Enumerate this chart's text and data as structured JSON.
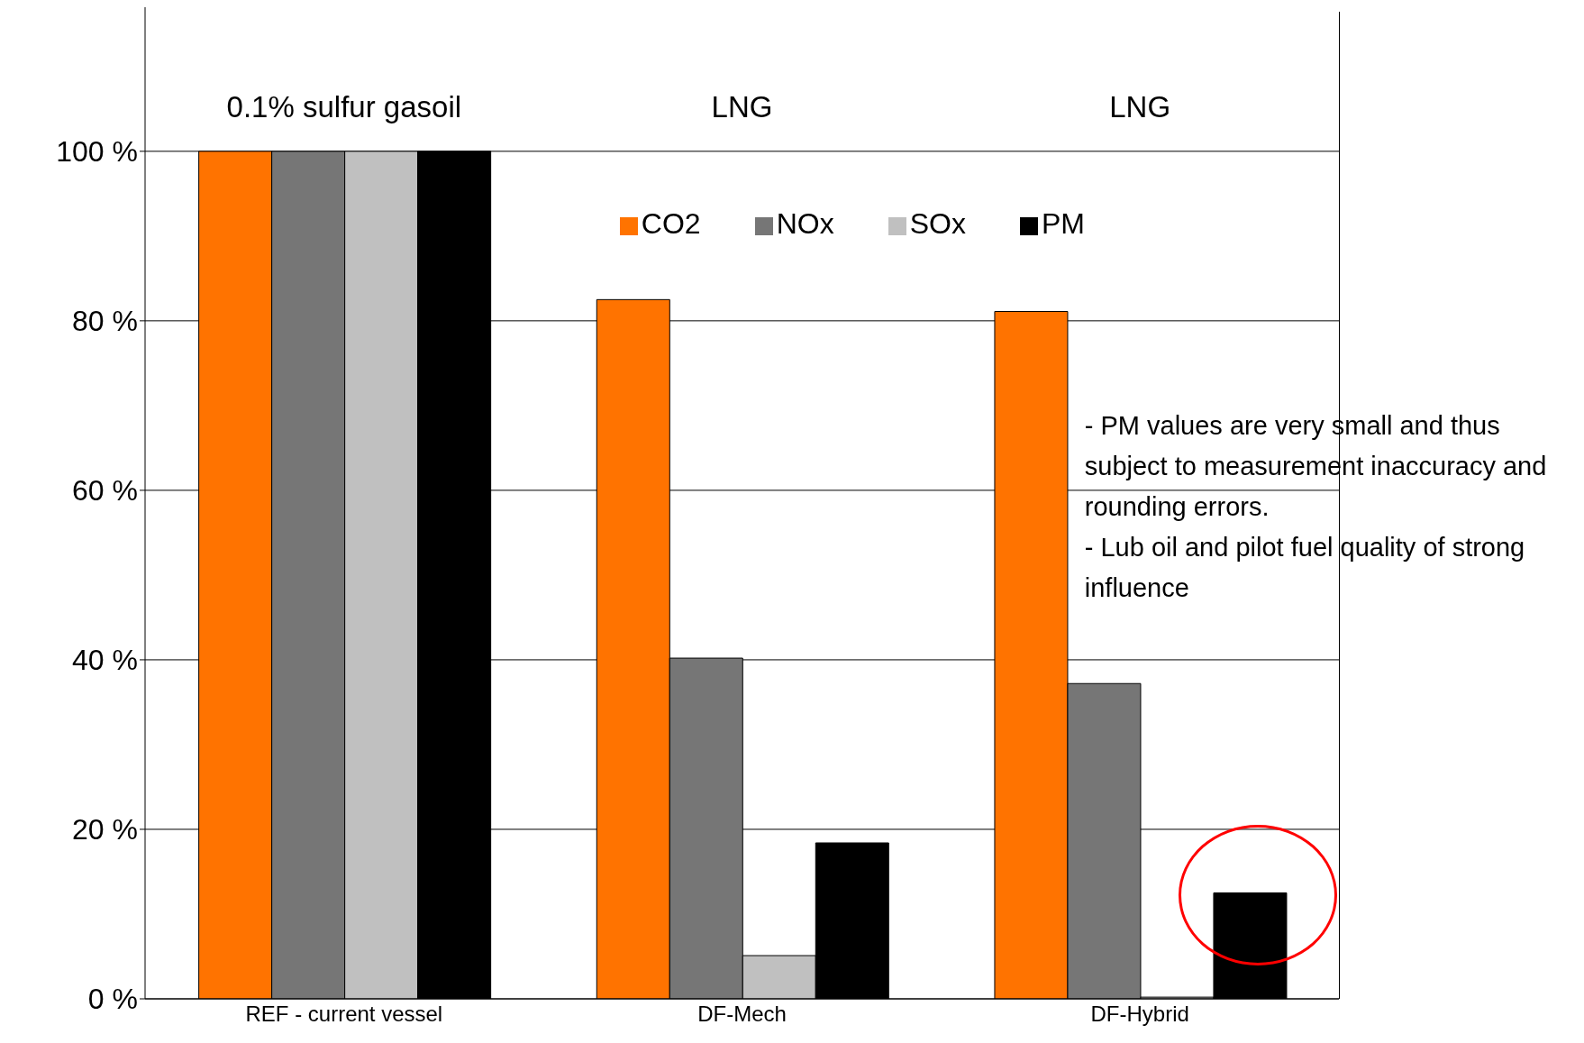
{
  "chart_data": {
    "type": "bar",
    "categories": [
      "REF - current vessel",
      "DF-Mech",
      "DF-Hybrid"
    ],
    "series": [
      {
        "name": "CO2",
        "color": "#ff7300",
        "values": [
          100,
          82.5,
          81.1
        ]
      },
      {
        "name": "NOx",
        "color": "#767676",
        "values": [
          100,
          40.2,
          37.2
        ]
      },
      {
        "name": "SOx",
        "color": "#c0c0c0",
        "values": [
          100,
          5.1,
          0.2
        ]
      },
      {
        "name": "PM",
        "color": "#000000",
        "values": [
          100,
          18.4,
          12.5
        ]
      }
    ],
    "ylim": [
      0,
      117
    ],
    "yticks": [
      {
        "value": 0,
        "label": "0 %"
      },
      {
        "value": 20,
        "label": "20 %"
      },
      {
        "value": 40,
        "label": "40 %"
      },
      {
        "value": 60,
        "label": "60 %"
      },
      {
        "value": 80,
        "label": "80 %"
      },
      {
        "value": 100,
        "label": "100 %"
      }
    ],
    "grid": "y",
    "legend": "top",
    "annotations": [
      "0.1% sulfur gasoil",
      "LNG",
      "LNG",
      "- PM values are very small and thus subject to measurement inaccuracy and rounding errors.\n- Lub oil and pilot fuel quality of strong influence"
    ]
  }
}
